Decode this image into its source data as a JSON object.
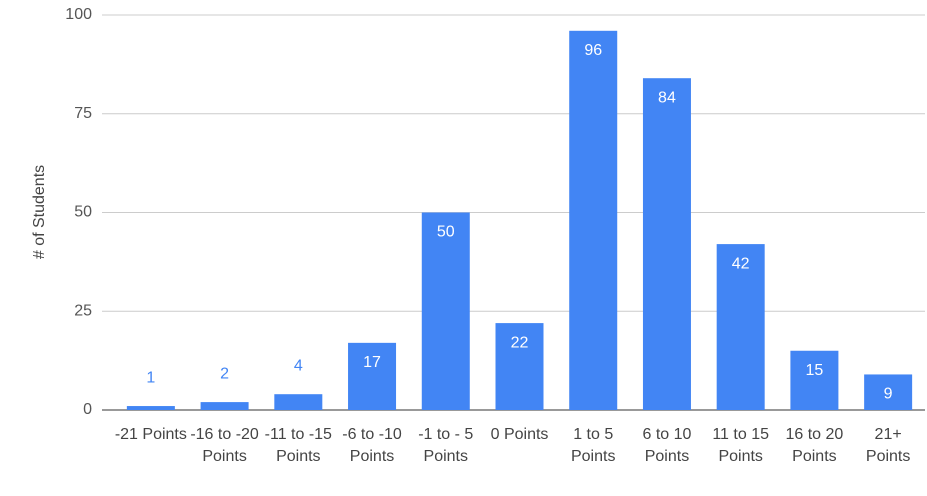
{
  "chart_data": {
    "type": "bar",
    "y_label": "# of Students",
    "categories": [
      "-21 Points",
      "-16 to -20 Points",
      "-11 to -15 Points",
      "-6 to -10 Points",
      "-1 to - 5 Points",
      "0 Points",
      "1 to 5 Points",
      "6 to 10 Points",
      "11 to 15 Points",
      "16 to 20 Points",
      "21+ Points"
    ],
    "values": [
      1,
      2,
      4,
      17,
      50,
      22,
      96,
      84,
      42,
      15,
      9
    ],
    "color": "#4285f4",
    "ylim": [
      0,
      100
    ],
    "yticks": [
      0,
      25,
      50,
      75,
      100
    ],
    "grid": true
  }
}
